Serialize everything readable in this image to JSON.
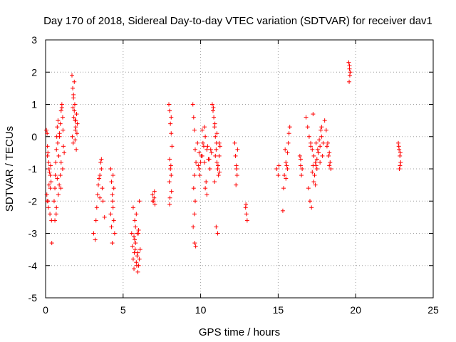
{
  "chart_data": {
    "type": "scatter",
    "title": "Day 170 of 2018, Sidereal Day-to-day VTEC variation (SDTVAR) for receiver dav1",
    "xlabel": "GPS time / hours",
    "ylabel": "SDTVAR / TECUs",
    "xlim": [
      0,
      25
    ],
    "ylim": [
      -5,
      3
    ],
    "xticks": [
      "0",
      "5",
      "10",
      "15",
      "20",
      "25"
    ],
    "yticks": [
      "-5",
      "-4",
      "-3",
      "-2",
      "-1",
      "0",
      "1",
      "2",
      "3"
    ],
    "grid": true,
    "marker": "+",
    "series_color": "#ff0000",
    "series": [
      {
        "name": "SDTVAR",
        "x": [
          0.05,
          0.1,
          0.12,
          0.15,
          0.2,
          0.22,
          0.25,
          0.3,
          0.32,
          0.35,
          0.08,
          0.1,
          0.18,
          0.28,
          0.15,
          0.3,
          0.38,
          0.4,
          0.22,
          0.12,
          0.55,
          0.6,
          0.62,
          0.65,
          0.7,
          0.72,
          0.75,
          0.8,
          0.78,
          0.85,
          0.9,
          0.95,
          1.0,
          1.05,
          1.1,
          1.12,
          1.15,
          1.0,
          0.95,
          0.88,
          0.82,
          0.7,
          0.68,
          0.9,
          1.05,
          1.2,
          1.1,
          0.98,
          0.75,
          0.6,
          1.7,
          1.75,
          1.8,
          1.85,
          1.9,
          1.95,
          2.0,
          2.05,
          1.72,
          1.78,
          1.82,
          1.88,
          1.92,
          1.98,
          1.85,
          1.8,
          1.9,
          1.76,
          1.95,
          2.02,
          3.1,
          3.2,
          3.25,
          3.3,
          3.35,
          3.4,
          3.5,
          3.55,
          3.6,
          3.65,
          3.7,
          3.8,
          3.5,
          3.45,
          3.6,
          4.2,
          4.25,
          4.3,
          4.35,
          4.4,
          4.45,
          4.3,
          4.2,
          4.35,
          4.4,
          4.25,
          4.32,
          5.55,
          5.6,
          5.65,
          5.7,
          5.72,
          5.75,
          5.8,
          5.85,
          5.9,
          5.95,
          6.0,
          6.05,
          6.1,
          5.65,
          5.75,
          5.85,
          5.95,
          6.05,
          5.7,
          5.8,
          5.9,
          6.0,
          5.78,
          5.88,
          5.98,
          6.9,
          6.95,
          7.0,
          7.05,
          6.92,
          7.02,
          7.95,
          8.0,
          8.05,
          8.1,
          8.15,
          8.0,
          8.05,
          8.1,
          7.98,
          8.08,
          8.12,
          8.02,
          8.0,
          8.1,
          9.5,
          9.55,
          9.6,
          9.65,
          9.7,
          9.6,
          9.55,
          9.65,
          9.6,
          9.52,
          9.68,
          9.62,
          9.8,
          9.9,
          10.0,
          10.1,
          10.2,
          10.3,
          10.4,
          10.5,
          10.6,
          10.7,
          9.85,
          9.95,
          10.05,
          10.15,
          10.25,
          10.35,
          10.45,
          10.55,
          10.65,
          10.25,
          10.3,
          10.1,
          10.4,
          9.9,
          10.75,
          10.8,
          10.85,
          10.9,
          10.95,
          11.0,
          11.05,
          11.1,
          11.15,
          11.2,
          11.25,
          10.82,
          10.92,
          11.02,
          11.12,
          11.22,
          11.0,
          11.1,
          10.9,
          11.05,
          10.95,
          11.2,
          12.2,
          12.25,
          12.3,
          12.35,
          12.28,
          12.32,
          12.38,
          12.9,
          12.95,
          13.0,
          12.92,
          14.9,
          15.0,
          15.05,
          15.3,
          15.35,
          15.4,
          15.5,
          15.6,
          15.65,
          15.7,
          15.75,
          15.55,
          15.45,
          15.6,
          15.5,
          16.4,
          16.45,
          16.5,
          16.55,
          16.45,
          16.8,
          16.9,
          17.0,
          17.1,
          17.2,
          17.3,
          17.4,
          17.5,
          17.6,
          17.7,
          17.8,
          17.9,
          16.95,
          17.05,
          17.15,
          17.25,
          17.35,
          17.45,
          17.55,
          17.65,
          17.75,
          17.85,
          17.3,
          17.5,
          17.2,
          17.6,
          17.4,
          17.7,
          17.1,
          17.8,
          17.25,
          17.45,
          18.0,
          18.1,
          18.2,
          18.3,
          18.35,
          18.4,
          18.15,
          18.25,
          18.3,
          19.55,
          19.6,
          19.62,
          19.65,
          19.58,
          19.6,
          22.75,
          22.8,
          22.85,
          22.9,
          22.82,
          22.88,
          22.78,
          22.86
        ],
        "y": [
          0.2,
          0.1,
          -0.3,
          -0.5,
          -0.8,
          -1.0,
          -1.1,
          -1.2,
          -0.9,
          -1.4,
          -1.8,
          -2.0,
          -2.2,
          -2.4,
          -2.0,
          -1.6,
          -2.6,
          -3.3,
          -1.5,
          -0.6,
          -2.0,
          -1.6,
          -1.2,
          -0.8,
          -0.4,
          0.0,
          0.3,
          0.5,
          -0.2,
          -0.6,
          0.0,
          0.4,
          0.8,
          1.0,
          0.6,
          0.2,
          -0.3,
          -0.8,
          -1.2,
          -1.5,
          -1.8,
          -2.2,
          -2.4,
          0.1,
          0.9,
          -0.5,
          -1.0,
          -1.6,
          -1.3,
          -2.6,
          1.9,
          1.5,
          1.2,
          0.8,
          0.5,
          0.3,
          0.7,
          0.4,
          0.0,
          -0.2,
          0.6,
          1.0,
          0.2,
          -0.4,
          1.7,
          1.3,
          -0.1,
          0.9,
          0.5,
          0.1,
          -3.0,
          -3.2,
          -2.6,
          -2.2,
          -1.8,
          -1.5,
          -1.2,
          -0.8,
          -1.0,
          -1.6,
          -2.0,
          -2.5,
          -1.9,
          -1.3,
          -0.7,
          -1.0,
          -1.4,
          -1.8,
          -2.2,
          -2.6,
          -3.0,
          -3.3,
          -2.4,
          -1.2,
          -1.6,
          -2.8,
          -2.0,
          -3.0,
          -3.4,
          -3.8,
          -4.1,
          -3.6,
          -3.2,
          -2.8,
          -2.4,
          -3.0,
          -3.6,
          -4.0,
          -3.8,
          -3.5,
          -2.2,
          -2.6,
          -3.9,
          -4.2,
          -2.0,
          -3.1,
          -3.3,
          -3.7,
          -2.9,
          -3.5,
          -4.0,
          -3.0,
          -1.8,
          -2.0,
          -1.9,
          -2.1,
          -2.0,
          -1.7,
          1.0,
          0.8,
          0.4,
          0.1,
          -0.3,
          -0.7,
          -1.0,
          -1.2,
          -1.4,
          -0.9,
          -1.7,
          -1.9,
          -2.1,
          0.6,
          1.0,
          0.6,
          0.2,
          -0.4,
          -0.8,
          -1.2,
          -1.6,
          -2.0,
          -2.4,
          -2.8,
          -3.4,
          -3.3,
          -0.2,
          -0.5,
          -0.8,
          -0.6,
          -0.3,
          0.0,
          -0.4,
          -0.7,
          -1.0,
          -0.5,
          -0.9,
          -1.2,
          -0.6,
          -0.2,
          -0.8,
          -1.4,
          -0.3,
          -0.7,
          -0.4,
          0.3,
          -1.6,
          0.2,
          -1.8,
          -1.0,
          1.0,
          0.8,
          0.6,
          0.3,
          0.0,
          -0.4,
          -0.8,
          -1.0,
          -1.2,
          -0.6,
          -0.3,
          0.9,
          0.4,
          -0.2,
          -0.9,
          -1.1,
          -2.8,
          -3.0,
          -1.4,
          0.1,
          -0.6,
          -0.2,
          -0.2,
          -0.6,
          -0.9,
          -1.2,
          -1.5,
          -1.0,
          -0.4,
          -2.2,
          -2.4,
          -2.6,
          -2.1,
          -1.0,
          -1.2,
          -0.9,
          -2.3,
          -1.6,
          -1.2,
          -0.8,
          -0.5,
          -0.2,
          0.1,
          0.3,
          -0.9,
          -0.4,
          -1.0,
          -1.3,
          -0.6,
          -0.9,
          -1.2,
          -1.0,
          -0.7,
          0.6,
          0.3,
          0.0,
          -0.2,
          -0.4,
          -0.6,
          -0.8,
          -1.0,
          -0.5,
          -0.3,
          0.0,
          -0.2,
          -1.6,
          -2.0,
          -2.2,
          0.7,
          -1.2,
          -0.9,
          -0.4,
          -0.1,
          0.2,
          -0.6,
          -1.4,
          -0.7,
          -1.1,
          -0.5,
          -1.5,
          -0.8,
          -0.3,
          0.3,
          -0.9,
          -0.2,
          0.5,
          0.2,
          -0.2,
          -0.5,
          -0.8,
          -1.0,
          -0.3,
          -0.6,
          -0.9,
          2.3,
          2.1,
          1.9,
          2.0,
          1.7,
          2.2,
          -0.2,
          -0.4,
          -0.6,
          -0.8,
          -1.0,
          -0.5,
          -0.3,
          -0.9
        ]
      }
    ]
  }
}
